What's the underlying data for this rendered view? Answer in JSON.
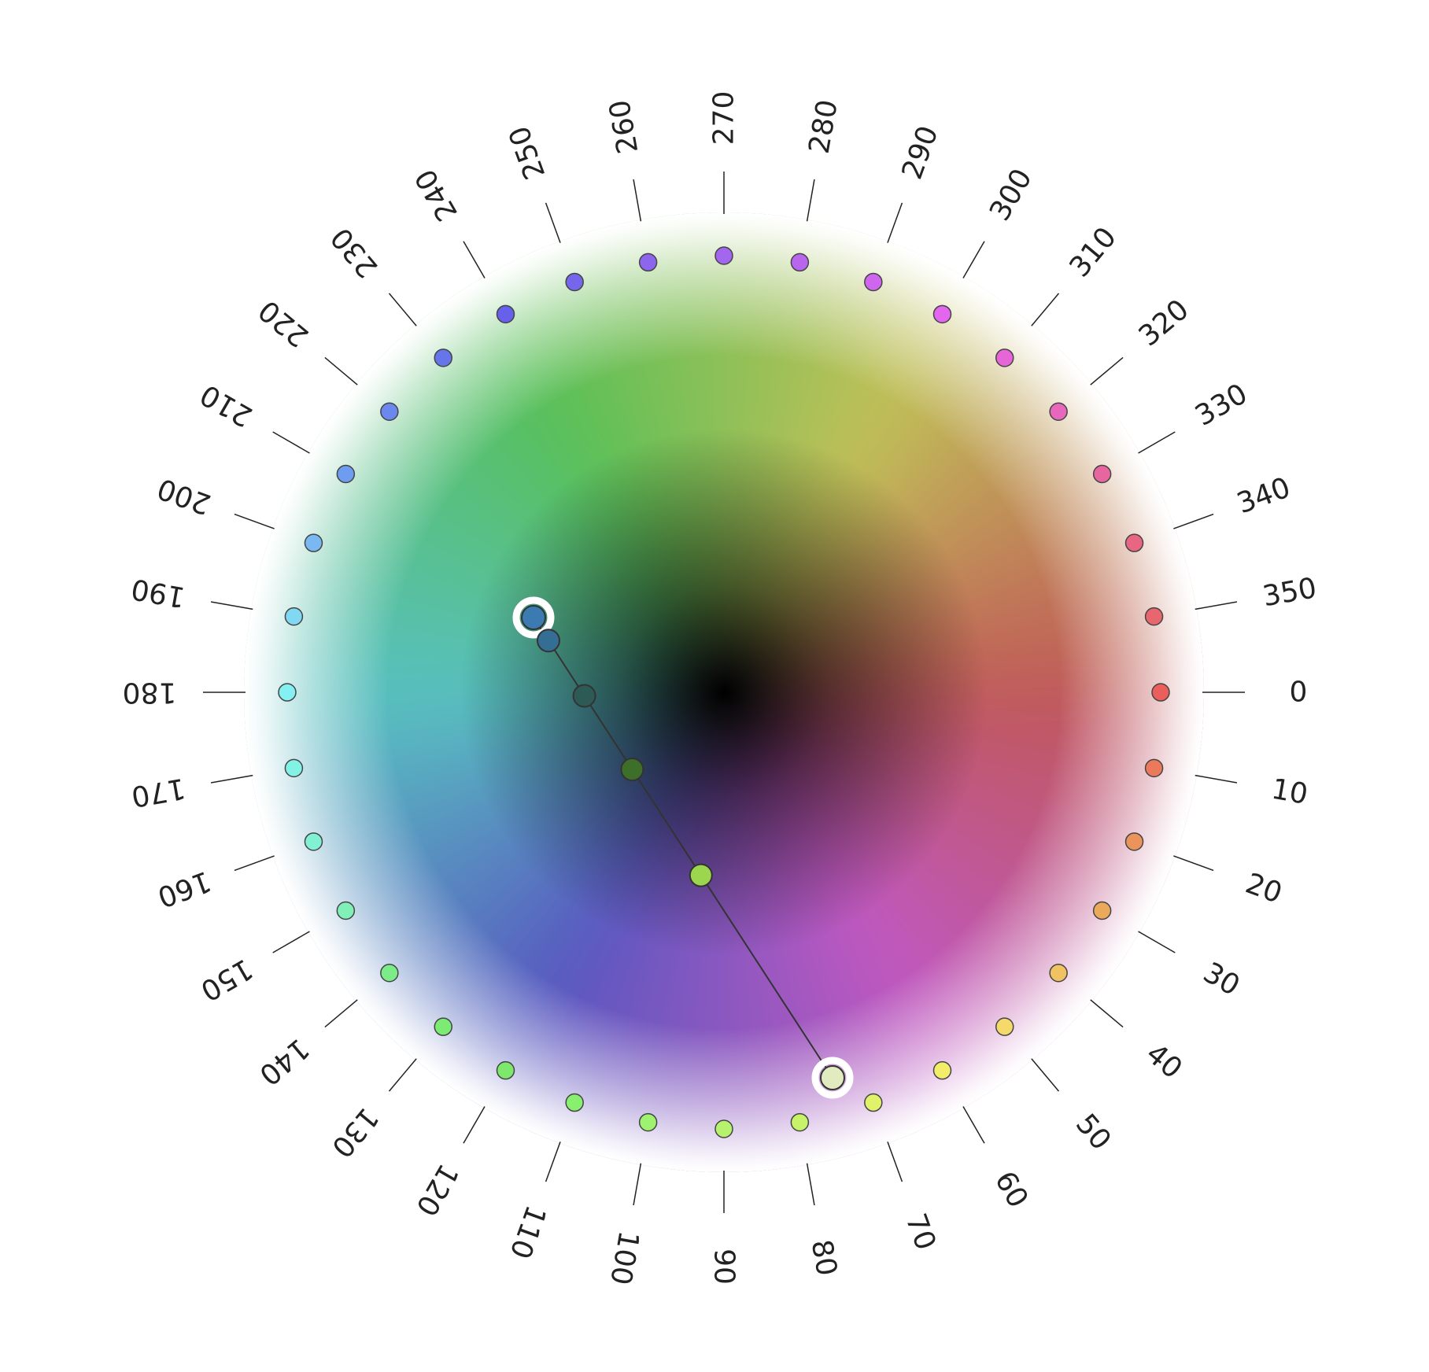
{
  "wheel": {
    "hue_step": 10,
    "hue_count": 36,
    "hue_labels": [
      "0",
      "10",
      "20",
      "30",
      "40",
      "50",
      "60",
      "70",
      "80",
      "90",
      "100",
      "110",
      "120",
      "130",
      "140",
      "150",
      "160",
      "170",
      "180",
      "190",
      "200",
      "210",
      "220",
      "230",
      "240",
      "250",
      "260",
      "270",
      "280",
      "290",
      "300",
      "310",
      "320",
      "330",
      "340",
      "350"
    ],
    "swatch_colors": [
      "#ea5e5b",
      "#ea7a5b",
      "#ea945b",
      "#eaa95b",
      "#f0c261",
      "#f5da6b",
      "#f2ee6a",
      "#dff26a",
      "#c8f26a",
      "#b6f26e",
      "#9ef270",
      "#88f06e",
      "#7ee86c",
      "#7ceb74",
      "#7cec8a",
      "#80f0b8",
      "#82f0d2",
      "#82f2e4",
      "#84f0f2",
      "#80d8f2",
      "#7ab8f2",
      "#6e9cf0",
      "#6a88ee",
      "#6676ea",
      "#6660ea",
      "#7666ec",
      "#8c66ec",
      "#a366ee",
      "#b866ee",
      "#ce66ee",
      "#e266ee",
      "#e666d8",
      "#e866bc",
      "#e866a0",
      "#e86682",
      "#e8666e"
    ]
  },
  "ramp": {
    "start_color": "#3c7ab2",
    "end_color": "#e2ebc0",
    "points": [
      {
        "color": "#3c7ab2",
        "handle": true
      },
      {
        "color": "#356e94",
        "handle": false
      },
      {
        "color": "#2d5a55",
        "handle": false
      },
      {
        "color": "#3d6f2a",
        "handle": false
      },
      {
        "color": "#9cd64e",
        "handle": false
      },
      {
        "color": "#e2ebc0",
        "handle": true
      }
    ]
  }
}
